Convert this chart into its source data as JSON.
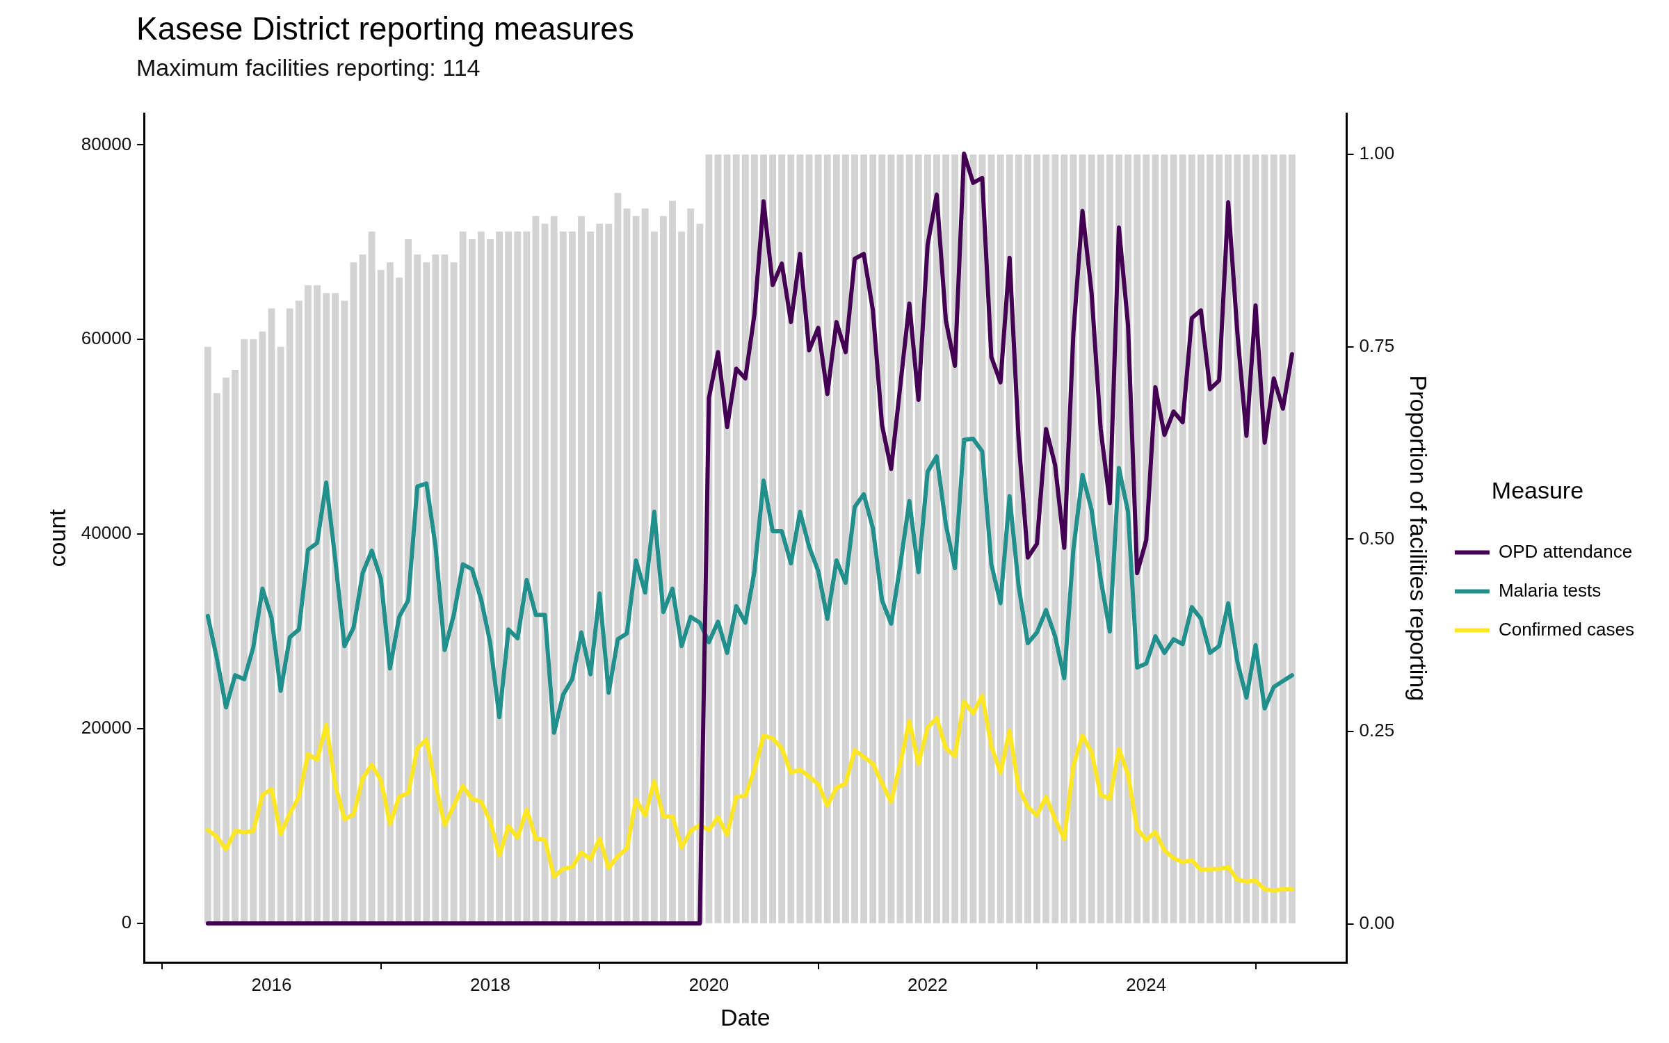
{
  "chart_data": {
    "type": "line",
    "title": "Kasese District reporting measures",
    "subtitle": "Maximum facilities reporting: 114",
    "xlabel": "Date",
    "ylabel": "count",
    "y2label": "Proportion of facilities reporting",
    "legend_title": "Measure",
    "legend": "right",
    "grid": false,
    "x": [
      "2015-06",
      "2015-07",
      "2015-08",
      "2015-09",
      "2015-10",
      "2015-11",
      "2015-12",
      "2016-01",
      "2016-02",
      "2016-03",
      "2016-04",
      "2016-05",
      "2016-06",
      "2016-07",
      "2016-08",
      "2016-09",
      "2016-10",
      "2016-11",
      "2016-12",
      "2017-01",
      "2017-02",
      "2017-03",
      "2017-04",
      "2017-05",
      "2017-06",
      "2017-07",
      "2017-08",
      "2017-09",
      "2017-10",
      "2017-11",
      "2017-12",
      "2018-01",
      "2018-02",
      "2018-03",
      "2018-04",
      "2018-05",
      "2018-06",
      "2018-07",
      "2018-08",
      "2018-09",
      "2018-10",
      "2018-11",
      "2018-12",
      "2019-01",
      "2019-02",
      "2019-03",
      "2019-04",
      "2019-05",
      "2019-06",
      "2019-07",
      "2019-08",
      "2019-09",
      "2019-10",
      "2019-11",
      "2019-12",
      "2020-01",
      "2020-02",
      "2020-03",
      "2020-04",
      "2020-05",
      "2020-06",
      "2020-07",
      "2020-08",
      "2020-09",
      "2020-10",
      "2020-11",
      "2020-12",
      "2021-01",
      "2021-02",
      "2021-03",
      "2021-04",
      "2021-05",
      "2021-06",
      "2021-07",
      "2021-08",
      "2021-09",
      "2021-10",
      "2021-11",
      "2021-12",
      "2022-01",
      "2022-02",
      "2022-03",
      "2022-04",
      "2022-05",
      "2022-06",
      "2022-07",
      "2022-08",
      "2022-09",
      "2022-10",
      "2022-11",
      "2022-12",
      "2023-01",
      "2023-02",
      "2023-03",
      "2023-04",
      "2023-05",
      "2023-06",
      "2023-07",
      "2023-08",
      "2023-09",
      "2023-10",
      "2023-11",
      "2023-12",
      "2024-01",
      "2024-02",
      "2024-03",
      "2024-04",
      "2024-05",
      "2024-06",
      "2024-07",
      "2024-08",
      "2024-09",
      "2024-10",
      "2024-11",
      "2024-12",
      "2025-01",
      "2025-02",
      "2025-03",
      "2025-04",
      "2025-05"
    ],
    "xlim": [
      "2014-11",
      "2025-11"
    ],
    "xticks": [
      "2016",
      "2018",
      "2020",
      "2022",
      "2024"
    ],
    "ylim": [
      -4000,
      83200
    ],
    "yticks": [
      0,
      20000,
      40000,
      60000,
      80000
    ],
    "y2lim": [
      -0.05,
      1.053
    ],
    "y2ticks": [
      {
        "value": 0,
        "label": "0.00"
      },
      {
        "value": 0.25,
        "label": "0.25"
      },
      {
        "value": 0.5,
        "label": "0.50"
      },
      {
        "value": 0.75,
        "label": "0.75"
      },
      {
        "value": 1,
        "label": "1.00"
      }
    ],
    "series": [
      {
        "type": "bar",
        "axis": "y2",
        "color": "#d3d3d3",
        "values": [
          0.75,
          0.69,
          0.71,
          0.72,
          0.76,
          0.76,
          0.77,
          0.8,
          0.75,
          0.8,
          0.81,
          0.83,
          0.83,
          0.82,
          0.82,
          0.81,
          0.86,
          0.87,
          0.9,
          0.85,
          0.86,
          0.84,
          0.89,
          0.87,
          0.86,
          0.87,
          0.87,
          0.86,
          0.9,
          0.89,
          0.9,
          0.89,
          0.9,
          0.9,
          0.9,
          0.9,
          0.92,
          0.91,
          0.92,
          0.9,
          0.9,
          0.92,
          0.9,
          0.91,
          0.91,
          0.95,
          0.93,
          0.92,
          0.93,
          0.9,
          0.92,
          0.94,
          0.9,
          0.93,
          0.91,
          1,
          1,
          1,
          1,
          1,
          1,
          1,
          1,
          1,
          1,
          1,
          1,
          1,
          1,
          1,
          1,
          1,
          1,
          1,
          1,
          1,
          1,
          1,
          1,
          1,
          1,
          1,
          1,
          1,
          1,
          1,
          1,
          1,
          1,
          1,
          1,
          1,
          1,
          1,
          1,
          1,
          1,
          1,
          1,
          1,
          1,
          1,
          1,
          1,
          1,
          1,
          1,
          1,
          1,
          1,
          1,
          1,
          1,
          1,
          1,
          1,
          1,
          1,
          1,
          1
        ]
      },
      {
        "name": "OPD attendance",
        "color": "#440154",
        "values": [
          0,
          0,
          0,
          0,
          0,
          0,
          0,
          0,
          0,
          0,
          0,
          0,
          0,
          0,
          0,
          0,
          0,
          0,
          0,
          0,
          0,
          0,
          0,
          0,
          0,
          0,
          0,
          0,
          0,
          0,
          0,
          0,
          0,
          0,
          0,
          0,
          0,
          0,
          0,
          0,
          0,
          0,
          0,
          0,
          0,
          0,
          0,
          0,
          0,
          0,
          0,
          0,
          0,
          0,
          0,
          54000,
          58700,
          51000,
          57000,
          56000,
          62600,
          74200,
          65600,
          67800,
          61800,
          68800,
          58900,
          61200,
          54400,
          61800,
          58700,
          68300,
          68800,
          63000,
          51200,
          46700,
          55200,
          63700,
          53800,
          69700,
          74900,
          62000,
          57300,
          79100,
          76100,
          76600,
          58200,
          55600,
          68400,
          49600,
          37600,
          39000,
          50800,
          47100,
          38600,
          60600,
          73200,
          64800,
          50800,
          43200,
          71500,
          61500,
          36000,
          39400,
          55100,
          50200,
          52600,
          51500,
          62200,
          63000,
          54900,
          55800,
          74100,
          60700,
          50100,
          63500,
          49400,
          56000,
          52900,
          58500
        ]
      },
      {
        "name": "Malaria tests",
        "color": "#21908c",
        "values": [
          31600,
          27200,
          22200,
          25500,
          25100,
          28400,
          34400,
          31400,
          23900,
          29400,
          30200,
          38400,
          39100,
          45300,
          37300,
          28500,
          30400,
          36000,
          38300,
          35400,
          26200,
          31500,
          33200,
          44900,
          45200,
          38700,
          28100,
          31700,
          36900,
          36400,
          33300,
          28800,
          21200,
          30200,
          29300,
          35300,
          31700,
          31700,
          19600,
          23500,
          25100,
          29900,
          25600,
          33900,
          23700,
          29200,
          29800,
          37300,
          34000,
          42300,
          32000,
          34400,
          28500,
          31500,
          30900,
          28900,
          31000,
          27800,
          32600,
          30900,
          36200,
          45500,
          40300,
          40300,
          37000,
          42300,
          38700,
          36200,
          31300,
          37300,
          35000,
          42800,
          44100,
          40600,
          33200,
          30800,
          36800,
          43400,
          36100,
          46400,
          48000,
          41000,
          36500,
          49700,
          49800,
          48500,
          36900,
          32900,
          43900,
          34600,
          28800,
          29900,
          32200,
          29500,
          25200,
          38400,
          46100,
          42500,
          35400,
          30000,
          46800,
          42300,
          26300,
          26700,
          29500,
          27800,
          29200,
          28700,
          32500,
          31300,
          27800,
          28500,
          32900,
          26900,
          23200,
          28600,
          22100,
          24300,
          24900,
          25500
        ]
      },
      {
        "name": "Confirmed cases",
        "color": "#fde725",
        "values": [
          9600,
          8900,
          7600,
          9500,
          9400,
          9500,
          13200,
          13800,
          9200,
          11300,
          13000,
          17400,
          16800,
          20400,
          14200,
          10700,
          11200,
          14900,
          16300,
          14700,
          10200,
          13000,
          13400,
          18000,
          18900,
          14200,
          10100,
          12100,
          14100,
          12800,
          12500,
          10500,
          7000,
          10000,
          8800,
          11700,
          8700,
          8600,
          4800,
          5600,
          5800,
          7300,
          6600,
          8700,
          5700,
          6900,
          7700,
          12700,
          11100,
          14600,
          11000,
          11000,
          7800,
          9500,
          10100,
          9600,
          10900,
          9100,
          13000,
          13100,
          15800,
          19300,
          19000,
          18000,
          15500,
          15800,
          15100,
          14300,
          12100,
          13900,
          14400,
          17800,
          17100,
          16400,
          14400,
          12500,
          16400,
          20800,
          16400,
          20100,
          21100,
          18000,
          17200,
          22800,
          21600,
          23400,
          18200,
          15500,
          19800,
          13900,
          12000,
          11100,
          13000,
          10700,
          8700,
          16200,
          19300,
          17600,
          13200,
          12800,
          17900,
          15300,
          9700,
          8600,
          9400,
          7500,
          6700,
          6300,
          6500,
          5500,
          5600,
          5600,
          5800,
          4500,
          4300,
          4400,
          3500,
          3400,
          3500,
          3500
        ]
      }
    ]
  }
}
